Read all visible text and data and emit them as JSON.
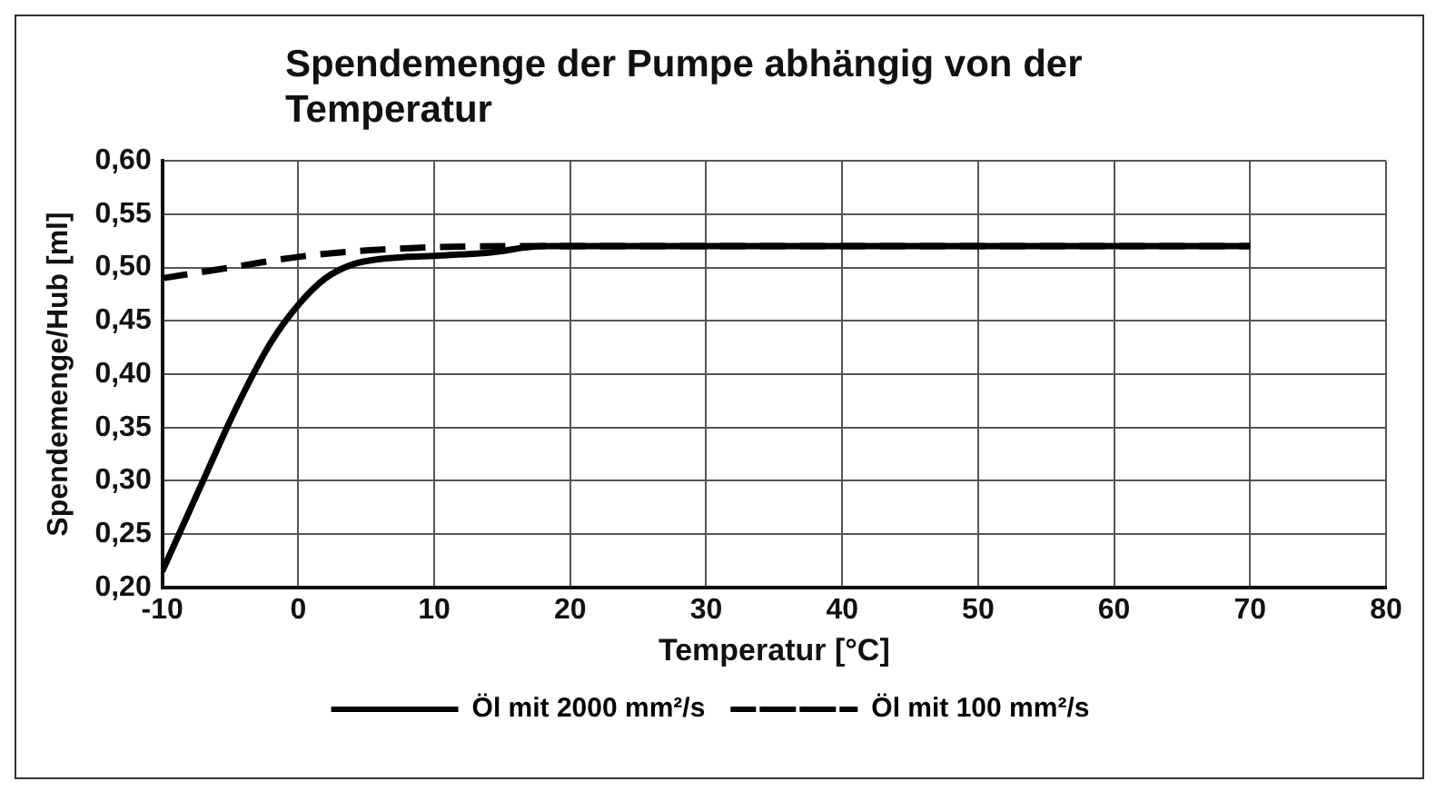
{
  "chart_data": {
    "type": "line",
    "title": "Spendemenge der Pumpe abhängig von der Temperatur",
    "xlabel": "Temperatur [°C]",
    "ylabel": "Spendemenge/Hub [ml]",
    "xlim": [
      -10,
      80
    ],
    "xticks": [
      -10,
      0,
      10,
      20,
      30,
      40,
      50,
      60,
      70,
      80
    ],
    "ylim": [
      0.2,
      0.6
    ],
    "yticks": [
      {
        "value": 0.2,
        "label": "0,20"
      },
      {
        "value": 0.25,
        "label": "0,25"
      },
      {
        "value": 0.3,
        "label": "0,30"
      },
      {
        "value": 0.35,
        "label": "0,35"
      },
      {
        "value": 0.4,
        "label": "0,40"
      },
      {
        "value": 0.45,
        "label": "0,45"
      },
      {
        "value": 0.5,
        "label": "0,50"
      },
      {
        "value": 0.55,
        "label": "0,55"
      },
      {
        "value": 0.6,
        "label": "0,60"
      }
    ],
    "grid": true,
    "legend": "bottom",
    "marker": "none",
    "series": [
      {
        "name": "Öl mit 2000 mm²/s",
        "color": "#000000",
        "line_style": "solid",
        "x": [
          -10,
          -7,
          -4.5,
          -2,
          0,
          2,
          4,
          6,
          8,
          10,
          14,
          18,
          30,
          50,
          70
        ],
        "values": [
          0.215,
          0.3,
          0.37,
          0.43,
          0.465,
          0.49,
          0.503,
          0.508,
          0.51,
          0.511,
          0.514,
          0.52,
          0.52,
          0.52,
          0.52
        ]
      },
      {
        "name": "Öl mit 100 mm²/s",
        "color": "#000000",
        "line_style": "dashed",
        "x": [
          -10,
          -5,
          0,
          5,
          10,
          15,
          20,
          40,
          70
        ],
        "values": [
          0.49,
          0.5,
          0.51,
          0.516,
          0.519,
          0.52,
          0.52,
          0.52,
          0.52
        ]
      }
    ]
  }
}
